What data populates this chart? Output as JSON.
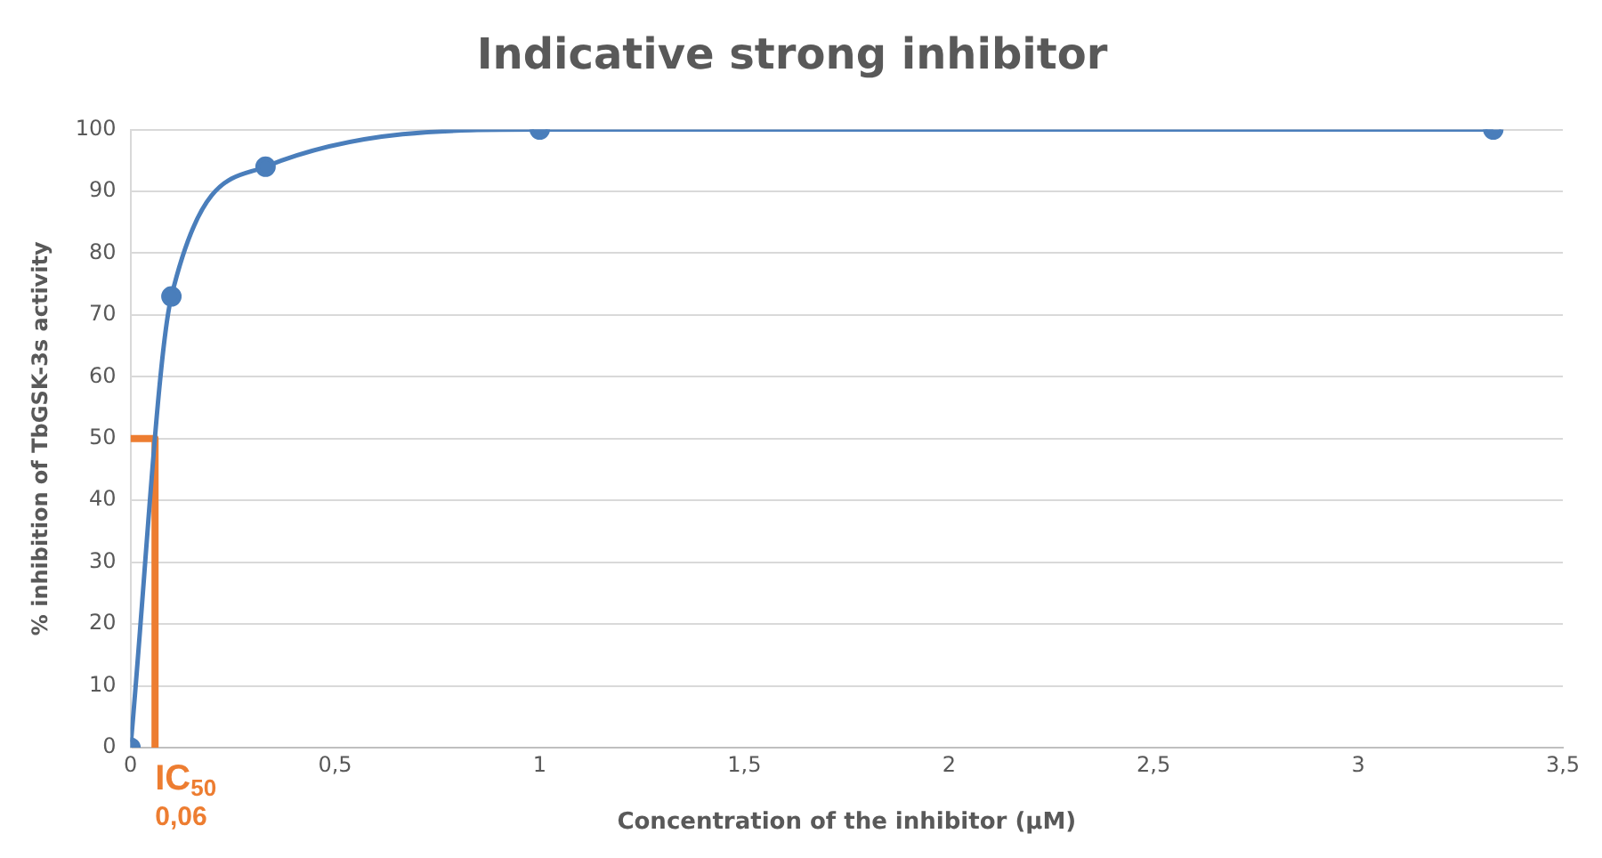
{
  "chart_data": {
    "type": "line",
    "title": "Indicative strong inhibitor",
    "xlabel": "Concentration of the inhibitor (µM)",
    "ylabel": "% inhibition of TbGSK-3s activity",
    "series": [
      {
        "color": "#4a7ebb",
        "x": [
          0,
          0.1,
          0.33,
          1,
          3.33
        ],
        "values": [
          0,
          73,
          94,
          100,
          100
        ],
        "marker": "circle"
      },
      {
        "color": "#ed7d31",
        "x": [
          0,
          0.06,
          0.06
        ],
        "values": [
          50,
          50,
          0
        ],
        "marker": "none"
      }
    ],
    "xlim": [
      0,
      3.5
    ],
    "xticks": [
      0,
      {
        "value": 0.5,
        "label": "0,5"
      },
      1,
      {
        "value": 1.5,
        "label": "1,5"
      },
      2,
      {
        "value": 2.5,
        "label": "2,5"
      },
      3,
      {
        "value": 3.5,
        "label": "3,5"
      }
    ],
    "ylim": [
      0,
      100
    ],
    "yticks": [
      0,
      10,
      20,
      30,
      40,
      50,
      60,
      70,
      80,
      90,
      100
    ],
    "grid": "y",
    "legend": false,
    "annotations": [
      {
        "text": "IC$_{50}$",
        "x": 0.06,
        "y": 0
      },
      {
        "text": "0,06",
        "x": 0.06,
        "y": 0
      }
    ]
  }
}
